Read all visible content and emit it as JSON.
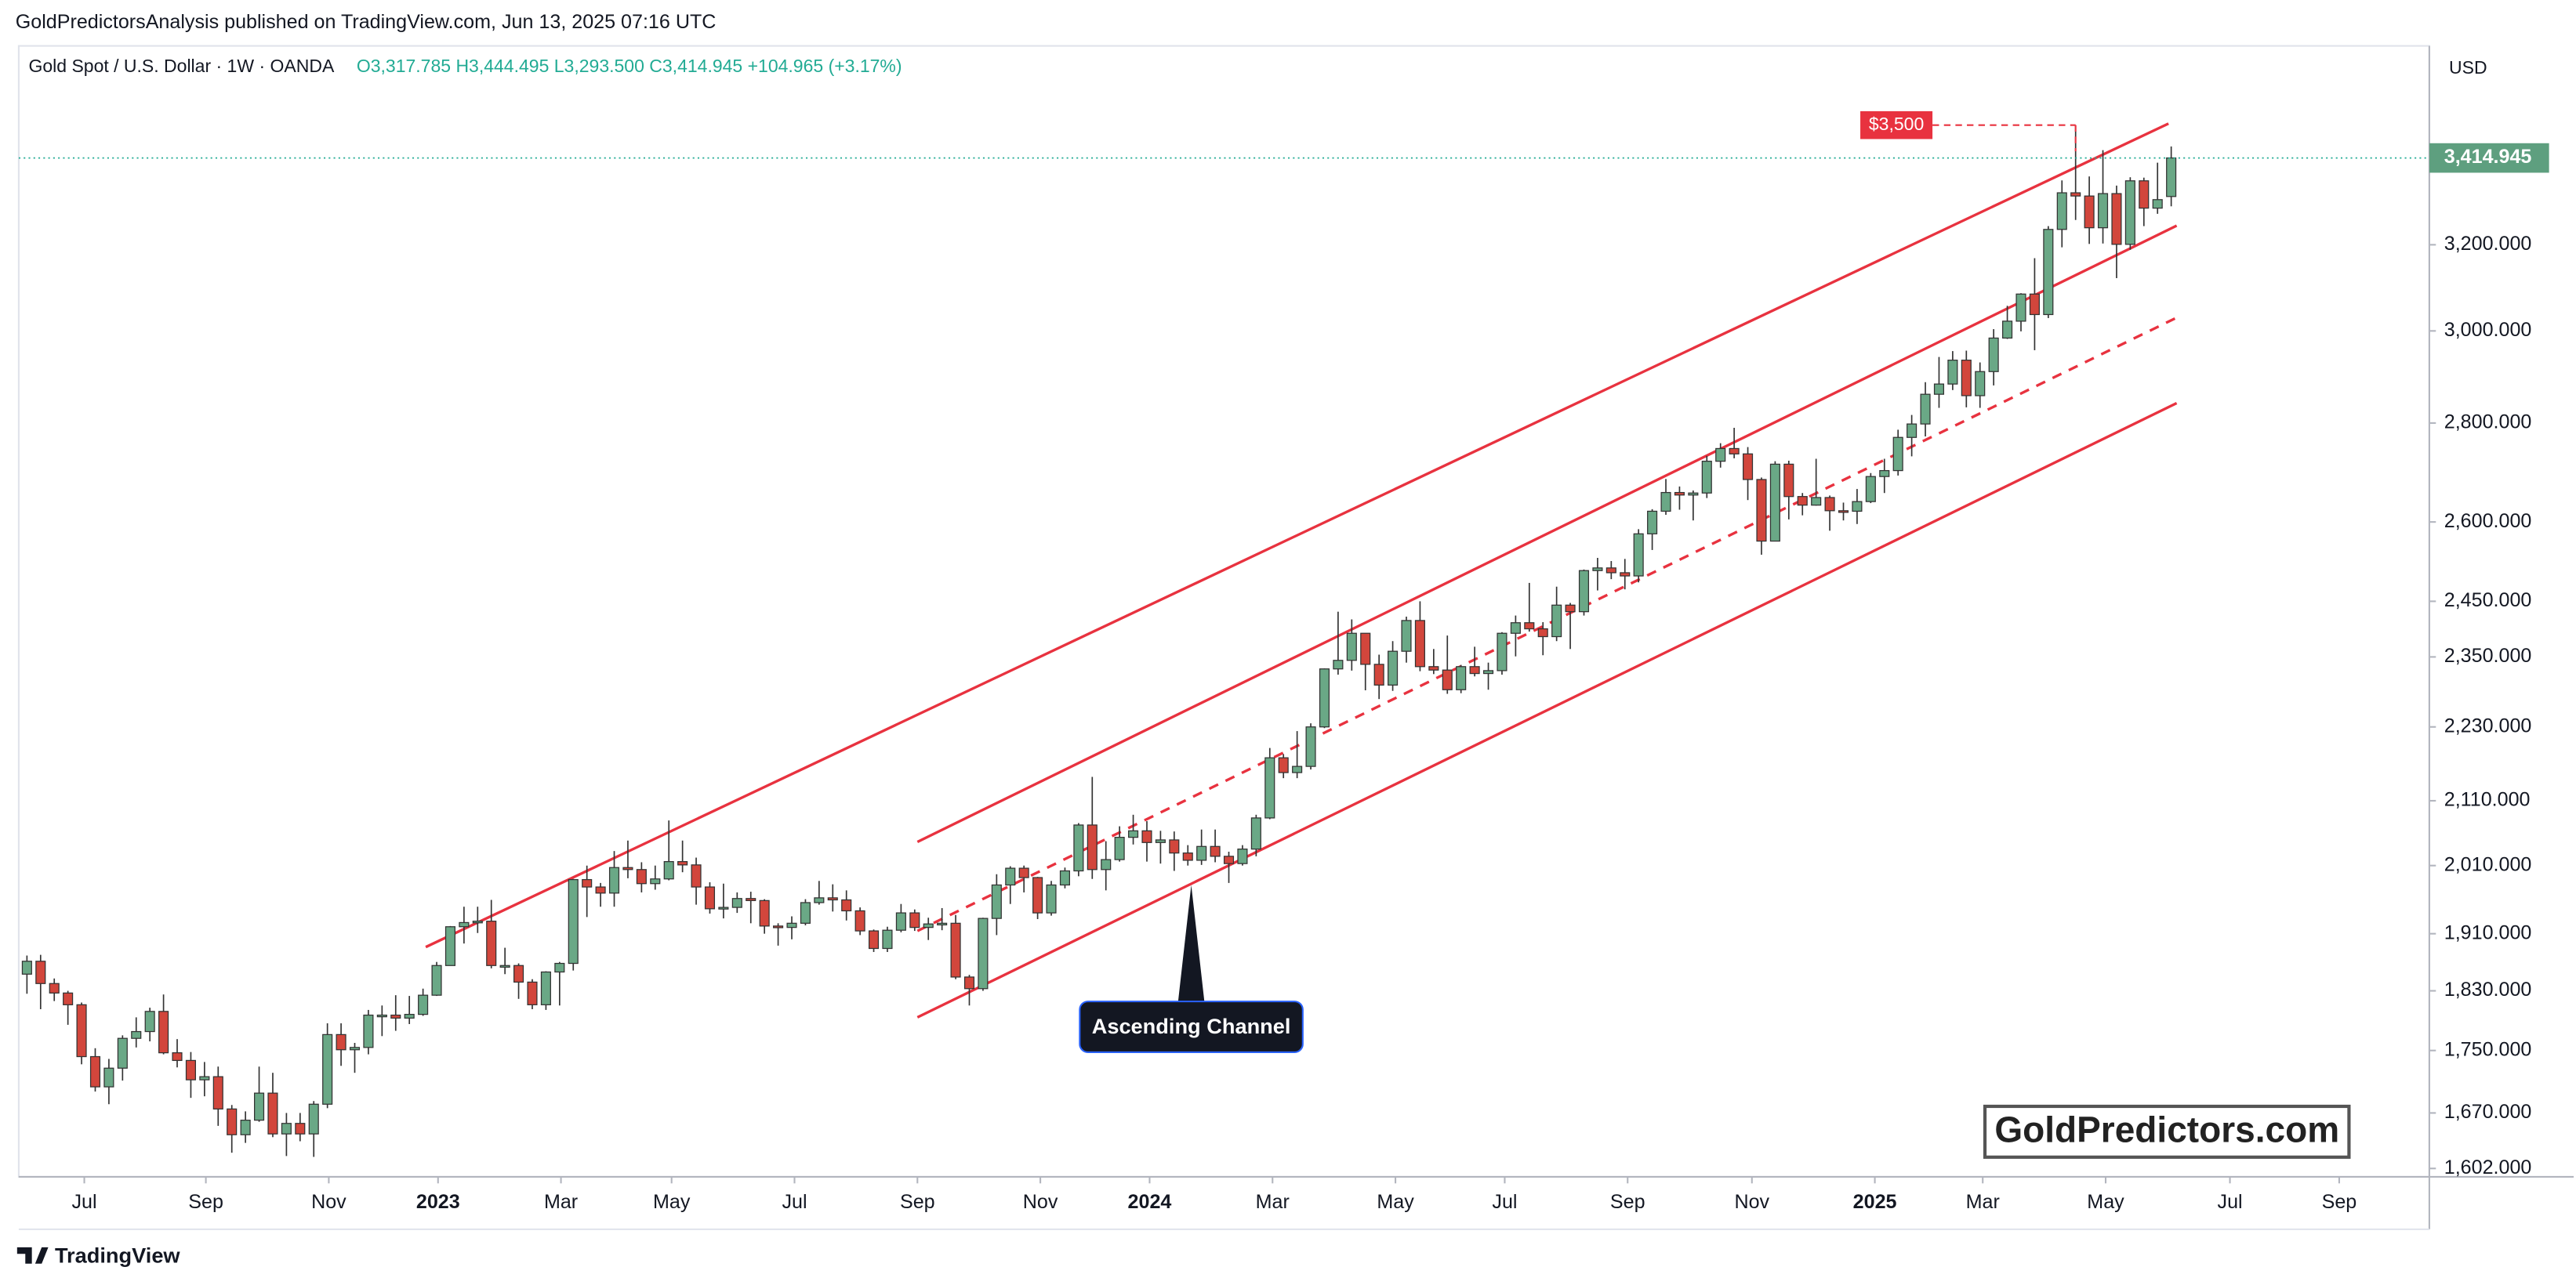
{
  "chart_data": {
    "type": "candlestick",
    "publisher": "GoldPredictorsAnalysis published on TradingView.com, Jun 13, 2025 07:16 UTC",
    "symbol": "Gold Spot / U.S. Dollar · 1W · OANDA",
    "ohlc_legend": [
      "O3,317.785",
      "H3,444.495",
      "L3,293.500",
      "C3,414.945",
      "+104.965 (+3.17%)"
    ],
    "currency": "USD",
    "last_price_label": "3,414.945",
    "watermark": "GoldPredictors.com",
    "footer": "TradingView",
    "callout": "Ascending Channel",
    "annotations": [
      {
        "text": "$3,500",
        "value": 3500
      }
    ],
    "log_scale": true,
    "up_color": "#6aa886",
    "down_color": "#d2463c",
    "channel_color": "#e8323f",
    "xlim": [
      -0.6,
      175.9
    ],
    "ylim": [
      1592,
      3714
    ],
    "xticks": [
      {
        "value": 4.2,
        "label": "Jul"
      },
      {
        "value": 13.1,
        "label": "Sep"
      },
      {
        "value": 22.1,
        "label": "Nov"
      },
      {
        "value": 30.1,
        "label": "2023"
      },
      {
        "value": 39.1,
        "label": "Mar"
      },
      {
        "value": 47.2,
        "label": "May"
      },
      {
        "value": 56.2,
        "label": "Jul"
      },
      {
        "value": 65.2,
        "label": "Sep"
      },
      {
        "value": 74.2,
        "label": "Nov"
      },
      {
        "value": 82.2,
        "label": "2024"
      },
      {
        "value": 91.2,
        "label": "Mar"
      },
      {
        "value": 100.2,
        "label": "May"
      },
      {
        "value": 108.2,
        "label": "Jul"
      },
      {
        "value": 117.2,
        "label": "Sep"
      },
      {
        "value": 126.3,
        "label": "Nov"
      },
      {
        "value": 135.3,
        "label": "2025"
      },
      {
        "value": 143.2,
        "label": "Mar"
      },
      {
        "value": 152.2,
        "label": "May"
      },
      {
        "value": 161.3,
        "label": "Jul"
      },
      {
        "value": 169.3,
        "label": "Sep"
      }
    ],
    "yticks": [
      {
        "value": 1602,
        "label": "1,602.000"
      },
      {
        "value": 1670,
        "label": "1,670.000"
      },
      {
        "value": 1750,
        "label": "1,750.000"
      },
      {
        "value": 1830,
        "label": "1,830.000"
      },
      {
        "value": 1910,
        "label": "1,910.000"
      },
      {
        "value": 2010,
        "label": "2,010.000"
      },
      {
        "value": 2110,
        "label": "2,110.000"
      },
      {
        "value": 2230,
        "label": "2,230.000"
      },
      {
        "value": 2350,
        "label": "2,350.000"
      },
      {
        "value": 2450,
        "label": "2,450.000"
      },
      {
        "value": 2600,
        "label": "2,600.000"
      },
      {
        "value": 2800,
        "label": "2,800.000"
      },
      {
        "value": 3000,
        "label": "3,000.000"
      },
      {
        "value": 3200,
        "label": "3,200.000"
      }
    ],
    "channel_lines": [
      {
        "style": "solid",
        "points": [
          [
            29.2,
            1891
          ],
          [
            156.8,
            3504
          ]
        ]
      },
      {
        "style": "solid",
        "points": [
          [
            65.2,
            2046
          ],
          [
            157.4,
            3246
          ]
        ]
      },
      {
        "style": "dashed",
        "points": [
          [
            65.2,
            1914
          ],
          [
            157.4,
            3030
          ]
        ]
      },
      {
        "style": "solid",
        "points": [
          [
            65.2,
            1794
          ],
          [
            157.4,
            2842
          ]
        ]
      }
    ],
    "candles": [
      [
        1853,
        1879,
        1826,
        1871
      ],
      [
        1871,
        1880,
        1805,
        1840
      ],
      [
        1840,
        1847,
        1816,
        1827
      ],
      [
        1827,
        1830,
        1784,
        1811
      ],
      [
        1811,
        1814,
        1732,
        1742
      ],
      [
        1742,
        1753,
        1697,
        1703
      ],
      [
        1703,
        1739,
        1681,
        1727
      ],
      [
        1727,
        1770,
        1711,
        1766
      ],
      [
        1766,
        1794,
        1754,
        1775
      ],
      [
        1775,
        1807,
        1762,
        1802
      ],
      [
        1802,
        1825,
        1745,
        1747
      ],
      [
        1747,
        1765,
        1728,
        1737
      ],
      [
        1737,
        1748,
        1689,
        1712
      ],
      [
        1712,
        1735,
        1691,
        1716
      ],
      [
        1716,
        1729,
        1654,
        1675
      ],
      [
        1675,
        1680,
        1621,
        1643
      ],
      [
        1643,
        1672,
        1633,
        1661
      ],
      [
        1661,
        1729,
        1659,
        1695
      ],
      [
        1695,
        1721,
        1640,
        1644
      ],
      [
        1644,
        1670,
        1617,
        1657
      ],
      [
        1657,
        1670,
        1635,
        1644
      ],
      [
        1644,
        1685,
        1616,
        1681
      ],
      [
        1681,
        1786,
        1676,
        1771
      ],
      [
        1771,
        1786,
        1730,
        1751
      ],
      [
        1751,
        1760,
        1721,
        1754
      ],
      [
        1754,
        1804,
        1745,
        1797
      ],
      [
        1797,
        1810,
        1769,
        1797
      ],
      [
        1797,
        1824,
        1776,
        1793
      ],
      [
        1793,
        1823,
        1785,
        1798
      ],
      [
        1798,
        1833,
        1796,
        1824
      ],
      [
        1824,
        1870,
        1823,
        1865
      ],
      [
        1865,
        1921,
        1865,
        1920
      ],
      [
        1920,
        1949,
        1896,
        1926
      ],
      [
        1926,
        1949,
        1911,
        1928
      ],
      [
        1928,
        1959,
        1861,
        1865
      ],
      [
        1865,
        1890,
        1853,
        1865
      ],
      [
        1865,
        1868,
        1819,
        1842
      ],
      [
        1842,
        1846,
        1805,
        1811
      ],
      [
        1811,
        1857,
        1804,
        1856
      ],
      [
        1856,
        1870,
        1810,
        1868
      ],
      [
        1868,
        1990,
        1858,
        1989
      ],
      [
        1989,
        2010,
        1934,
        1978
      ],
      [
        1978,
        1984,
        1949,
        1969
      ],
      [
        1969,
        2032,
        1949,
        2007
      ],
      [
        2007,
        2048,
        1991,
        2004
      ],
      [
        2004,
        2015,
        1970,
        1983
      ],
      [
        1983,
        2010,
        1974,
        1990
      ],
      [
        1990,
        2079,
        1988,
        2016
      ],
      [
        2016,
        2048,
        2000,
        2011
      ],
      [
        2011,
        2022,
        1952,
        1978
      ],
      [
        1978,
        1985,
        1939,
        1946
      ],
      [
        1946,
        1983,
        1932,
        1948
      ],
      [
        1948,
        1970,
        1940,
        1961
      ],
      [
        1961,
        1971,
        1925,
        1958
      ],
      [
        1958,
        1960,
        1910,
        1921
      ],
      [
        1921,
        1925,
        1893,
        1919
      ],
      [
        1919,
        1935,
        1902,
        1925
      ],
      [
        1925,
        1960,
        1922,
        1955
      ],
      [
        1955,
        1987,
        1952,
        1962
      ],
      [
        1962,
        1982,
        1942,
        1959
      ],
      [
        1959,
        1973,
        1929,
        1943
      ],
      [
        1943,
        1948,
        1908,
        1914
      ],
      [
        1914,
        1916,
        1884,
        1889
      ],
      [
        1889,
        1920,
        1884,
        1915
      ],
      [
        1915,
        1953,
        1912,
        1940
      ],
      [
        1940,
        1945,
        1914,
        1919
      ],
      [
        1919,
        1933,
        1901,
        1924
      ],
      [
        1924,
        1947,
        1915,
        1925
      ],
      [
        1925,
        1937,
        1846,
        1849
      ],
      [
        1849,
        1852,
        1810,
        1833
      ],
      [
        1833,
        1933,
        1830,
        1932
      ],
      [
        1932,
        1997,
        1908,
        1981
      ],
      [
        1981,
        2009,
        1953,
        2006
      ],
      [
        2006,
        2010,
        1970,
        1992
      ],
      [
        1992,
        1993,
        1931,
        1940
      ],
      [
        1940,
        1987,
        1936,
        1981
      ],
      [
        1981,
        2007,
        1976,
        2002
      ],
      [
        2002,
        2075,
        1994,
        2072
      ],
      [
        2072,
        2148,
        1990,
        2004
      ],
      [
        2004,
        2047,
        1973,
        2019
      ],
      [
        2019,
        2070,
        2016,
        2053
      ],
      [
        2053,
        2088,
        2042,
        2063
      ],
      [
        2063,
        2078,
        2016,
        2045
      ],
      [
        2045,
        2063,
        2013,
        2049
      ],
      [
        2049,
        2062,
        2002,
        2029
      ],
      [
        2029,
        2041,
        2010,
        2018
      ],
      [
        2018,
        2065,
        2011,
        2039
      ],
      [
        2039,
        2065,
        2015,
        2024
      ],
      [
        2024,
        2031,
        1984,
        2013
      ],
      [
        2013,
        2041,
        2010,
        2035
      ],
      [
        2035,
        2088,
        2024,
        2083
      ],
      [
        2083,
        2195,
        2081,
        2179
      ],
      [
        2179,
        2185,
        2146,
        2155
      ],
      [
        2155,
        2223,
        2146,
        2165
      ],
      [
        2165,
        2236,
        2160,
        2230
      ],
      [
        2230,
        2330,
        2228,
        2329
      ],
      [
        2329,
        2431,
        2319,
        2344
      ],
      [
        2344,
        2417,
        2326,
        2392
      ],
      [
        2392,
        2392,
        2292,
        2337
      ],
      [
        2337,
        2354,
        2277,
        2301
      ],
      [
        2301,
        2378,
        2291,
        2360
      ],
      [
        2360,
        2422,
        2340,
        2415
      ],
      [
        2415,
        2450,
        2325,
        2333
      ],
      [
        2333,
        2364,
        2320,
        2327
      ],
      [
        2327,
        2388,
        2286,
        2293
      ],
      [
        2293,
        2336,
        2287,
        2333
      ],
      [
        2333,
        2368,
        2316,
        2321
      ],
      [
        2321,
        2340,
        2293,
        2326
      ],
      [
        2326,
        2394,
        2319,
        2392
      ],
      [
        2392,
        2424,
        2351,
        2411
      ],
      [
        2411,
        2484,
        2395,
        2400
      ],
      [
        2400,
        2412,
        2353,
        2386
      ],
      [
        2386,
        2477,
        2378,
        2443
      ],
      [
        2443,
        2447,
        2364,
        2431
      ],
      [
        2431,
        2509,
        2424,
        2507
      ],
      [
        2507,
        2531,
        2470,
        2512
      ],
      [
        2512,
        2525,
        2491,
        2503
      ],
      [
        2503,
        2529,
        2472,
        2497
      ],
      [
        2497,
        2586,
        2485,
        2577
      ],
      [
        2577,
        2625,
        2546,
        2621
      ],
      [
        2621,
        2685,
        2614,
        2658
      ],
      [
        2658,
        2670,
        2624,
        2653
      ],
      [
        2653,
        2662,
        2603,
        2657
      ],
      [
        2657,
        2732,
        2647,
        2721
      ],
      [
        2721,
        2758,
        2708,
        2747
      ],
      [
        2747,
        2790,
        2727,
        2736
      ],
      [
        2736,
        2750,
        2643,
        2684
      ],
      [
        2684,
        2688,
        2537,
        2563
      ],
      [
        2563,
        2721,
        2563,
        2715
      ],
      [
        2715,
        2722,
        2605,
        2650
      ],
      [
        2650,
        2657,
        2613,
        2633
      ],
      [
        2633,
        2726,
        2632,
        2648
      ],
      [
        2648,
        2652,
        2583,
        2622
      ],
      [
        2622,
        2638,
        2603,
        2621
      ],
      [
        2621,
        2665,
        2596,
        2640
      ],
      [
        2640,
        2697,
        2637,
        2690
      ],
      [
        2690,
        2726,
        2657,
        2702
      ],
      [
        2702,
        2786,
        2692,
        2770
      ],
      [
        2770,
        2817,
        2731,
        2798
      ],
      [
        2798,
        2887,
        2772,
        2861
      ],
      [
        2861,
        2942,
        2832,
        2883
      ],
      [
        2883,
        2955,
        2870,
        2935
      ],
      [
        2935,
        2956,
        2833,
        2858
      ],
      [
        2858,
        2930,
        2832,
        2910
      ],
      [
        2910,
        3004,
        2880,
        2984
      ],
      [
        2984,
        3057,
        2982,
        3022
      ],
      [
        3022,
        3086,
        2999,
        3084
      ],
      [
        3084,
        3168,
        2957,
        3037
      ],
      [
        3037,
        3245,
        3029,
        3237
      ],
      [
        3237,
        3358,
        3194,
        3327
      ],
      [
        3327,
        3500,
        3260,
        3319
      ],
      [
        3319,
        3368,
        3202,
        3241
      ],
      [
        3241,
        3435,
        3203,
        3325
      ],
      [
        3325,
        3345,
        3121,
        3201
      ],
      [
        3201,
        3366,
        3188,
        3357
      ],
      [
        3357,
        3365,
        3245,
        3289
      ],
      [
        3289,
        3403,
        3275,
        3310
      ],
      [
        3317.785,
        3444.495,
        3293.5,
        3414.945
      ]
    ]
  }
}
